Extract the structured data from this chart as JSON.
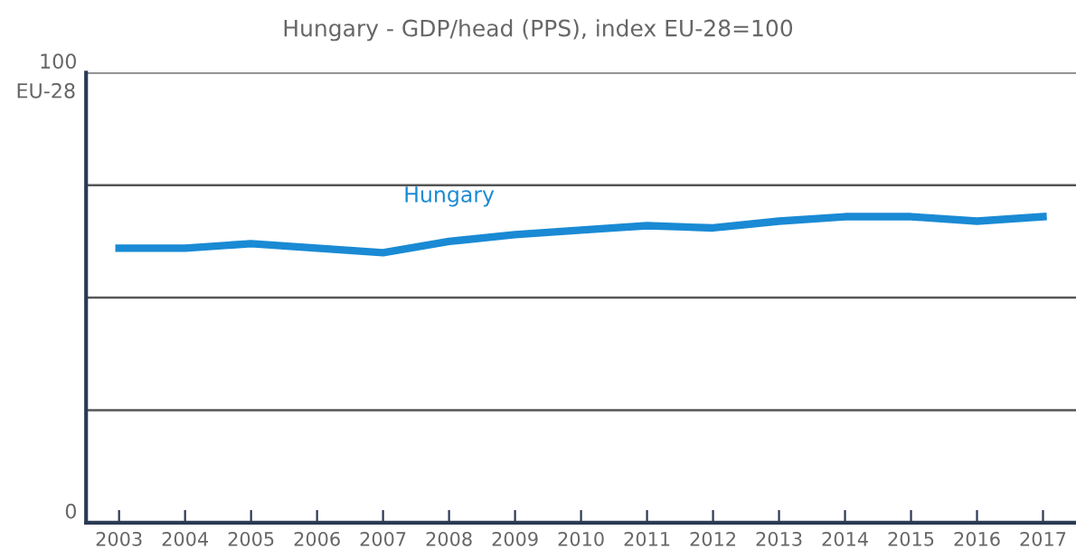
{
  "chart_data": {
    "type": "line",
    "title": "Hungary - GDP/head (PPS), index EU-28=100",
    "categories": [
      "2003",
      "2004",
      "2005",
      "2006",
      "2007",
      "2008",
      "2009",
      "2010",
      "2011",
      "2012",
      "2013",
      "2014",
      "2015",
      "2016",
      "2017"
    ],
    "series": [
      {
        "name": "Hungary",
        "color": "#1a8ad4",
        "values": [
          61,
          61,
          62,
          61,
          60,
          62.5,
          64,
          65,
          66,
          65.5,
          67,
          68,
          68,
          67,
          68
        ]
      }
    ],
    "ylim": [
      0,
      100
    ],
    "yticks": [
      0,
      {
        "value": 25,
        "label": null
      },
      {
        "value": 50,
        "label": null
      },
      {
        "value": 75,
        "label": null
      },
      100
    ],
    "annotations": [
      "EU-28"
    ],
    "grid": "y",
    "legend": false,
    "marker": "none",
    "line_style": "solid"
  }
}
